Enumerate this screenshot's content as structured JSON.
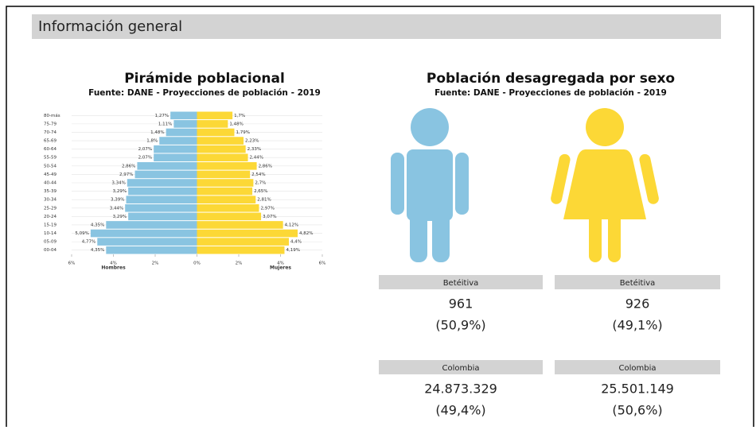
{
  "header": {
    "title": "Información general"
  },
  "chart_data": {
    "type": "pyramid",
    "title": "Pirámide poblacional",
    "subtitle": "Fuente: DANE - Proyecciones de población - 2019",
    "categories": [
      "80-más",
      "75-79",
      "70-74",
      "65-69",
      "60-64",
      "55-59",
      "50-54",
      "45-49",
      "40-44",
      "35-39",
      "30-34",
      "25-29",
      "20-24",
      "15-19",
      "10-14",
      "05-09",
      "00-04"
    ],
    "series": [
      {
        "name": "Hombres",
        "color": "#89c4e1",
        "side": "left",
        "values": [
          1.27,
          1.11,
          1.48,
          1.8,
          2.07,
          2.07,
          2.86,
          2.97,
          3.34,
          3.29,
          3.39,
          3.44,
          3.29,
          4.35,
          5.09,
          4.77,
          4.35
        ],
        "value_labels": [
          "1,27%",
          "1,11%",
          "1,48%",
          "1,8%",
          "2,07%",
          "2,07%",
          "2,86%",
          "2,97%",
          "3,34%",
          "3,29%",
          "3,39%",
          "3,44%",
          "3,29%",
          "4,35%",
          "5,09%",
          "4,77%",
          "4,35%"
        ]
      },
      {
        "name": "Mujeres",
        "color": "#fcd836",
        "side": "right",
        "values": [
          1.7,
          1.48,
          1.79,
          2.23,
          2.33,
          2.44,
          2.86,
          2.54,
          2.7,
          2.65,
          2.81,
          2.97,
          3.07,
          4.12,
          4.82,
          4.4,
          4.19
        ],
        "value_labels": [
          "1,7%",
          "1,48%",
          "1,79%",
          "2,23%",
          "2,33%",
          "2,44%",
          "2,86%",
          "2,54%",
          "2,7%",
          "2,65%",
          "2,81%",
          "2,97%",
          "3,07%",
          "4,12%",
          "4,82%",
          "4,4%",
          "4,19%"
        ]
      }
    ],
    "xlim": [
      -6,
      6
    ],
    "xticks": [
      {
        "value": -6,
        "label": "6%"
      },
      {
        "value": -4,
        "label": "4%"
      },
      {
        "value": -2,
        "label": "2%"
      },
      {
        "value": 0,
        "label": "0%"
      },
      {
        "value": 2,
        "label": "2%"
      },
      {
        "value": 4,
        "label": "4%"
      },
      {
        "value": 6,
        "label": "6%"
      }
    ],
    "grid": true
  },
  "sex_panel": {
    "title": "Población desagregada por sexo",
    "subtitle": "Fuente: DANE - Proyecciones de población - 2019",
    "groups": [
      {
        "men_label": "Betéitiva",
        "men": "961",
        "men_pct": "(50,9%)",
        "women_label": "Betéitiva",
        "women": "926",
        "women_pct": "(49,1%)"
      },
      {
        "men_label": "Colombia",
        "men": "24.873.329",
        "men_pct": "(49,4%)",
        "women_label": "Colombia",
        "women": "25.501.149",
        "women_pct": "(50,6%)"
      }
    ]
  }
}
